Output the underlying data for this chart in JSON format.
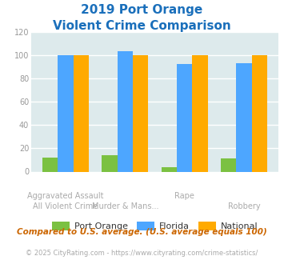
{
  "title_line1": "2019 Port Orange",
  "title_line2": "Violent Crime Comparison",
  "port_orange": [
    12,
    14,
    4,
    11
  ],
  "florida": [
    100,
    103,
    92,
    93
  ],
  "national": [
    100,
    100,
    100,
    100
  ],
  "color_port_orange": "#7bc142",
  "color_florida": "#4da6ff",
  "color_national": "#ffaa00",
  "ylim": [
    0,
    120
  ],
  "yticks": [
    0,
    20,
    40,
    60,
    80,
    100,
    120
  ],
  "bg_color": "#ddeaec",
  "title_color": "#1a6fbb",
  "top_labels": [
    "Aggravated Assault",
    "",
    "Rape",
    ""
  ],
  "bottom_labels": [
    "All Violent Crime",
    "Murder & Mans...",
    "",
    "Robbery"
  ],
  "footnote1": "Compared to U.S. average. (U.S. average equals 100)",
  "footnote2": "© 2025 CityRating.com - https://www.cityrating.com/crime-statistics/",
  "footnote1_color": "#cc6600",
  "footnote2_color": "#aaaaaa",
  "legend_labels": [
    "Port Orange",
    "Florida",
    "National"
  ]
}
